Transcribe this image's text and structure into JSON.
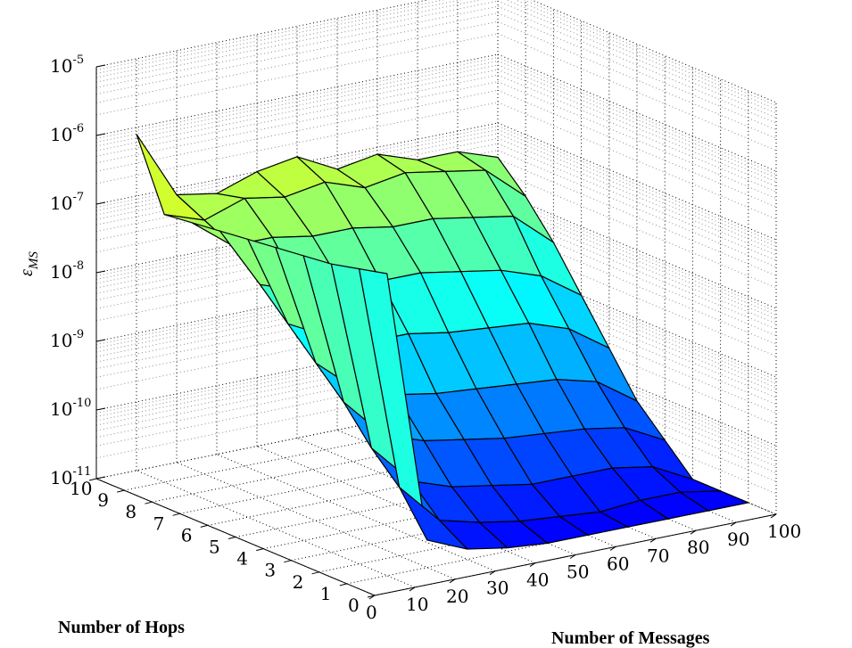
{
  "chart_data": {
    "type": "surface",
    "xlabel": "Number of Messages",
    "ylabel": "Number of Hops",
    "zlabel": "ε",
    "zlabel_sub": "MS",
    "z_scale": "log",
    "grid": true,
    "x_ticks": [
      "0",
      "10",
      "20",
      "30",
      "40",
      "50",
      "60",
      "70",
      "80",
      "90",
      "100"
    ],
    "y_ticks": [
      "0",
      "1",
      "2",
      "3",
      "4",
      "5",
      "6",
      "7",
      "8",
      "9",
      "10"
    ],
    "z_ticks": [
      {
        "base": "10",
        "exp": "-11"
      },
      {
        "base": "10",
        "exp": "-10"
      },
      {
        "base": "10",
        "exp": "-9"
      },
      {
        "base": "10",
        "exp": "-8"
      },
      {
        "base": "10",
        "exp": "-7"
      },
      {
        "base": "10",
        "exp": "-6"
      },
      {
        "base": "10",
        "exp": "-5"
      }
    ],
    "xlim": [
      0,
      100
    ],
    "ylim": [
      0,
      10
    ],
    "zlim_log10": [
      -11,
      -5
    ],
    "x": [
      10,
      20,
      30,
      40,
      50,
      60,
      70,
      80,
      90,
      100
    ],
    "y": [
      1,
      2,
      3,
      4,
      5,
      6,
      7,
      8,
      9,
      10
    ],
    "z_log10_rows_by_hops": [
      [
        -6.6,
        -10.6,
        -10.85,
        -10.95,
        -11.0,
        -11.0,
        -11.0,
        -11.0,
        -11.0,
        -11.0
      ],
      [
        -6.7,
        -10.0,
        -10.6,
        -10.75,
        -10.85,
        -10.9,
        -10.95,
        -10.9,
        -10.9,
        -11.0
      ],
      [
        -6.8,
        -9.6,
        -10.2,
        -10.4,
        -10.5,
        -10.6,
        -10.6,
        -10.6,
        -10.7,
        -11.0
      ],
      [
        -6.85,
        -9.1,
        -9.7,
        -9.9,
        -10.0,
        -10.1,
        -10.15,
        -10.2,
        -10.3,
        -10.6
      ],
      [
        -6.9,
        -8.7,
        -9.2,
        -9.4,
        -9.5,
        -9.55,
        -9.6,
        -9.65,
        -9.8,
        -10.2
      ],
      [
        -6.95,
        -8.3,
        -8.6,
        -8.8,
        -8.8,
        -8.9,
        -8.95,
        -9.0,
        -9.2,
        -9.6
      ],
      [
        -7.0,
        -7.9,
        -8.1,
        -8.1,
        -8.2,
        -8.2,
        -8.3,
        -8.4,
        -8.6,
        -9.0
      ],
      [
        -7.05,
        -7.5,
        -7.5,
        -7.6,
        -7.6,
        -7.7,
        -7.7,
        -7.8,
        -7.9,
        -8.4
      ],
      [
        -7.1,
        -7.3,
        -7.1,
        -7.2,
        -7.1,
        -7.3,
        -7.2,
        -7.3,
        -7.4,
        -7.9
      ],
      [
        -6.1,
        -7.1,
        -7.2,
        -7.0,
        -6.9,
        -7.2,
        -7.1,
        -7.3,
        -7.3,
        -7.5
      ]
    ],
    "colormap": "jet"
  }
}
